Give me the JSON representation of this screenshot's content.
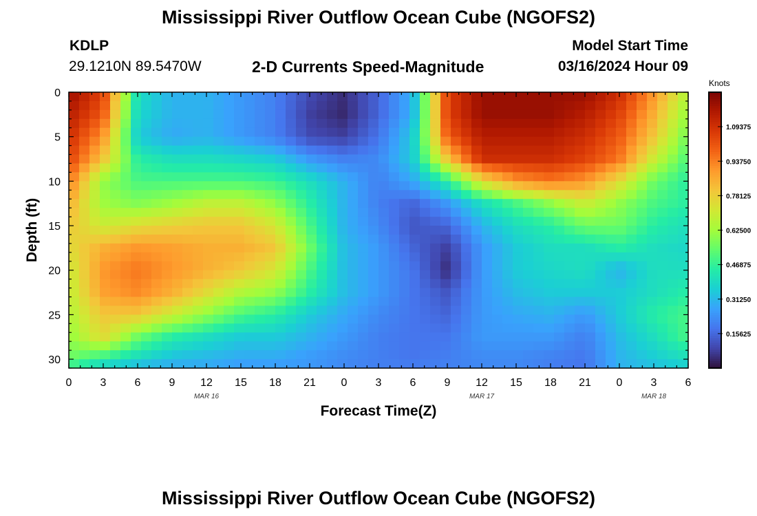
{
  "header": {
    "title": "Mississippi River Outflow Ocean Cube (NGOFS2)",
    "station_id": "KDLP",
    "coordinates": "29.1210N  89.5470W",
    "model_start_label": "Model Start Time",
    "model_start_value": "03/16/2024 Hour 09",
    "footer_title": "Mississippi River Outflow Ocean Cube (NGOFS2)"
  },
  "chart_data": {
    "type": "heatmap",
    "subtitle": "2-D Currents Speed-Magnitude",
    "xlabel": "Forecast Time(Z)",
    "ylabel": "Depth (ft)",
    "x_range_hours": [
      0,
      54
    ],
    "y_range_ft": [
      0,
      31
    ],
    "x_tick_labels": [
      "0",
      "3",
      "6",
      "9",
      "12",
      "15",
      "18",
      "21",
      "0",
      "3",
      "6",
      "9",
      "12",
      "15",
      "18",
      "21",
      "0",
      "3",
      "6"
    ],
    "date_labels": [
      {
        "label": "MAR 16",
        "at_hour": 12
      },
      {
        "label": "MAR 17",
        "at_hour": 36
      },
      {
        "label": "MAR 18",
        "at_hour": 51
      }
    ],
    "y_ticks": [
      0,
      5,
      10,
      15,
      20,
      25,
      30
    ],
    "colorbar": {
      "unit": "Knots",
      "range": [
        0.0,
        1.25
      ],
      "tick_labels": [
        "0.15625",
        "0.31250",
        "0.46875",
        "0.62500",
        "0.78125",
        "0.93750",
        "1.09375"
      ],
      "colors": [
        "#30123b",
        "#4145ab",
        "#4675ed",
        "#39a2fc",
        "#1bcfd4",
        "#24eca6",
        "#61fc6c",
        "#a4fc3b",
        "#d1e834",
        "#f3c63a",
        "#fe9b2d",
        "#f36315",
        "#d93806",
        "#b11901",
        "#7a0403"
      ]
    },
    "speed_knots_sample_grid": {
      "x_hours": [
        0,
        3,
        6,
        9,
        12,
        15,
        18,
        21,
        24,
        27,
        30,
        33,
        36,
        39,
        42,
        45,
        48,
        51,
        54
      ],
      "depth_ft": [
        0,
        2.5,
        5,
        7.5,
        10,
        12.5,
        15,
        17.5,
        20,
        22.5,
        25,
        27.5,
        30,
        31
      ],
      "values": [
        [
          1.2,
          1.05,
          0.4,
          0.3,
          0.3,
          0.25,
          0.2,
          0.1,
          0.05,
          0.15,
          0.3,
          1.05,
          1.2,
          1.2,
          1.2,
          1.2,
          1.1,
          0.9,
          0.65
        ],
        [
          1.15,
          1.0,
          0.38,
          0.3,
          0.3,
          0.25,
          0.2,
          0.08,
          0.04,
          0.15,
          0.3,
          1.05,
          1.2,
          1.2,
          1.2,
          1.15,
          1.05,
          0.85,
          0.6
        ],
        [
          1.1,
          0.9,
          0.35,
          0.28,
          0.3,
          0.25,
          0.2,
          0.1,
          0.08,
          0.18,
          0.35,
          1.0,
          1.15,
          1.15,
          1.15,
          1.1,
          1.0,
          0.8,
          0.55
        ],
        [
          1.05,
          0.8,
          0.45,
          0.4,
          0.4,
          0.38,
          0.35,
          0.25,
          0.2,
          0.22,
          0.35,
          0.8,
          1.1,
          1.1,
          1.1,
          1.05,
          0.95,
          0.7,
          0.5
        ],
        [
          0.95,
          0.6,
          0.5,
          0.5,
          0.5,
          0.5,
          0.48,
          0.4,
          0.3,
          0.2,
          0.28,
          0.45,
          0.75,
          0.9,
          0.95,
          0.9,
          0.75,
          0.55,
          0.45
        ],
        [
          0.85,
          0.62,
          0.58,
          0.62,
          0.68,
          0.68,
          0.6,
          0.45,
          0.3,
          0.2,
          0.15,
          0.25,
          0.4,
          0.5,
          0.6,
          0.7,
          0.6,
          0.5,
          0.45
        ],
        [
          0.8,
          0.7,
          0.75,
          0.78,
          0.8,
          0.8,
          0.72,
          0.5,
          0.3,
          0.22,
          0.12,
          0.15,
          0.3,
          0.4,
          0.45,
          0.55,
          0.55,
          0.45,
          0.4
        ],
        [
          0.75,
          0.85,
          0.9,
          0.88,
          0.85,
          0.85,
          0.8,
          0.55,
          0.32,
          0.25,
          0.15,
          0.08,
          0.25,
          0.35,
          0.4,
          0.4,
          0.45,
          0.4,
          0.38
        ],
        [
          0.7,
          0.9,
          0.95,
          0.9,
          0.85,
          0.8,
          0.72,
          0.5,
          0.32,
          0.25,
          0.18,
          0.05,
          0.25,
          0.35,
          0.38,
          0.4,
          0.3,
          0.4,
          0.4
        ],
        [
          0.68,
          0.88,
          0.92,
          0.85,
          0.75,
          0.65,
          0.6,
          0.45,
          0.32,
          0.25,
          0.18,
          0.12,
          0.25,
          0.32,
          0.35,
          0.35,
          0.35,
          0.4,
          0.45
        ],
        [
          0.65,
          0.8,
          0.8,
          0.7,
          0.6,
          0.5,
          0.45,
          0.35,
          0.28,
          0.22,
          0.18,
          0.15,
          0.25,
          0.28,
          0.3,
          0.25,
          0.35,
          0.45,
          0.5
        ],
        [
          0.6,
          0.75,
          0.55,
          0.45,
          0.4,
          0.35,
          0.35,
          0.3,
          0.25,
          0.2,
          0.18,
          0.18,
          0.25,
          0.25,
          0.25,
          0.2,
          0.32,
          0.4,
          0.5
        ],
        [
          0.55,
          0.45,
          0.38,
          0.32,
          0.3,
          0.28,
          0.28,
          0.25,
          0.22,
          0.2,
          0.18,
          0.2,
          0.22,
          0.22,
          0.2,
          0.18,
          0.3,
          0.35,
          0.4
        ],
        [
          0.45,
          0.35,
          0.3,
          0.28,
          0.28,
          0.25,
          0.25,
          0.25,
          0.22,
          0.2,
          0.2,
          0.2,
          0.22,
          0.22,
          0.2,
          0.18,
          0.3,
          0.32,
          0.35
        ]
      ]
    }
  }
}
